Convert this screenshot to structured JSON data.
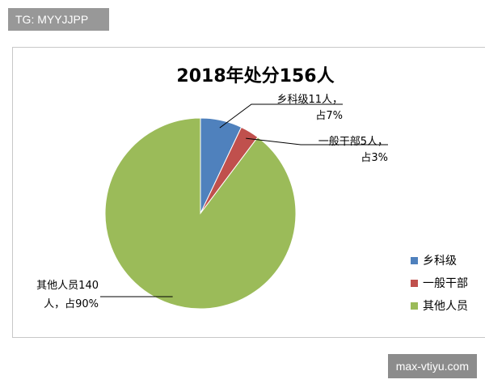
{
  "header_tag": "TG: MYYJJPP",
  "watermark": "max-vtiyu.com",
  "chart_data": {
    "type": "pie",
    "title": "2018年处分156人",
    "categories": [
      "乡科级",
      "一般干部",
      "其他人员"
    ],
    "values": [
      11,
      5,
      140
    ],
    "colors": [
      "#4f81bd",
      "#c0504d",
      "#9bbb59"
    ],
    "data_labels": [
      [
        "乡科级11人，",
        "占7%"
      ],
      [
        "一般干部5人，",
        "占3%"
      ],
      [
        "其他人员140",
        "人，占90%"
      ]
    ],
    "legend": [
      "乡科级",
      "一般干部",
      "其他人员"
    ],
    "legend_position": "right"
  }
}
